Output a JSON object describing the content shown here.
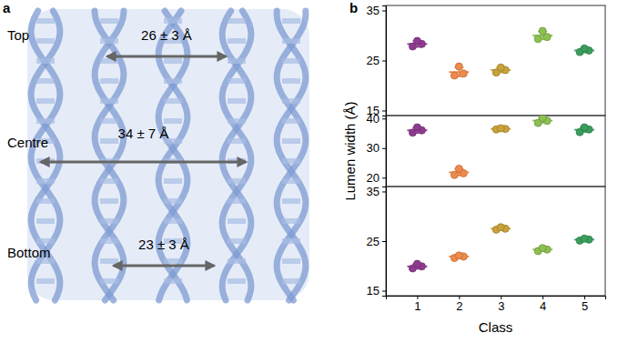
{
  "structure_panel": {
    "label": "a",
    "levels": [
      {
        "name": "Top",
        "width": "26 ± 3 Å"
      },
      {
        "name": "Centre",
        "width": "34 ± 7 Å"
      },
      {
        "name": "Bottom",
        "width": "23 ± 3 Å"
      }
    ]
  },
  "chart_panel_label": "b",
  "chart_data": [
    {
      "type": "scatter",
      "x": [
        1,
        2,
        3,
        4,
        5
      ],
      "xlim": [
        0.25,
        5.5
      ],
      "xticks": [
        1,
        2,
        3,
        4,
        5
      ],
      "ylim": [
        14,
        36
      ],
      "yticks": [
        15,
        25,
        35
      ],
      "tick_labels": "y",
      "colors": [
        "#8e3b8f",
        "#f08a4b",
        "#c9a23a",
        "#8cc152",
        "#3a9e5c"
      ],
      "points": [
        [
          27.8,
          28.3,
          28.9
        ],
        [
          22.0,
          22.4,
          23.8
        ],
        [
          22.6,
          23.1,
          23.6
        ],
        [
          29.3,
          29.7,
          30.9
        ],
        [
          26.7,
          27.0,
          27.4
        ]
      ],
      "values": [
        28.3,
        22.7,
        23.1,
        30.0,
        27.0
      ],
      "errors": [
        0.6,
        0.9,
        0.5,
        0.8,
        0.4
      ]
    },
    {
      "type": "scatter",
      "x": [
        1,
        2,
        3,
        4,
        5
      ],
      "xlim": [
        0.25,
        5.5
      ],
      "xticks": [
        1,
        2,
        3,
        4,
        5
      ],
      "ylim": [
        17,
        41
      ],
      "yticks": [
        20,
        30,
        40
      ],
      "tick_labels": "y",
      "y_label": "Lumen width (Å)",
      "colors": [
        "#8e3b8f",
        "#f08a4b",
        "#c9a23a",
        "#8cc152",
        "#3a9e5c"
      ],
      "points": [
        [
          35.2,
          36.0,
          37.0
        ],
        [
          20.9,
          21.5,
          23.0
        ],
        [
          36.3,
          36.5,
          36.7
        ],
        [
          38.5,
          39.2,
          40.2
        ],
        [
          35.4,
          36.3,
          37.0
        ]
      ],
      "values": [
        36.0,
        21.8,
        36.5,
        39.3,
        36.2
      ],
      "errors": [
        0.9,
        1.1,
        0.2,
        0.8,
        0.8
      ]
    },
    {
      "type": "scatter",
      "x": [
        1,
        2,
        3,
        4,
        5
      ],
      "xlim": [
        0.25,
        5.5
      ],
      "xticks": [
        1,
        2,
        3,
        4,
        5
      ],
      "ylim": [
        14,
        36
      ],
      "yticks": [
        15,
        25,
        35
      ],
      "x_label": "Class",
      "colors": [
        "#8e3b8f",
        "#f08a4b",
        "#c9a23a",
        "#8cc152",
        "#3a9e5c"
      ],
      "points": [
        [
          19.5,
          19.9,
          20.4
        ],
        [
          21.6,
          21.9,
          22.1
        ],
        [
          27.3,
          27.5,
          27.8
        ],
        [
          23.0,
          23.3,
          23.6
        ],
        [
          25.1,
          25.3,
          25.5
        ]
      ],
      "values": [
        19.9,
        21.9,
        27.5,
        23.3,
        25.3
      ],
      "errors": [
        0.5,
        0.3,
        0.3,
        0.3,
        0.2
      ]
    }
  ]
}
